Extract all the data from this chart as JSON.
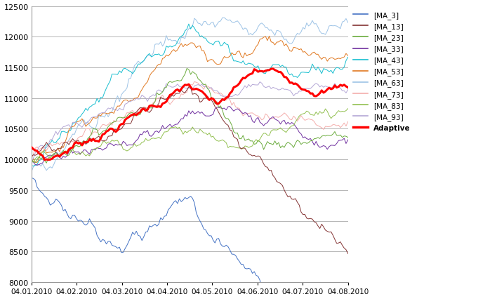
{
  "xlabels": [
    "04.01.2010",
    "04.02.2010",
    "04.03.2010",
    "04.04.2010",
    "04.05.2010",
    "04.06.2010",
    "04.07.2010",
    "04.08.2010"
  ],
  "ylim": [
    8000,
    12500
  ],
  "yticks": [
    8000,
    8500,
    9000,
    9500,
    10000,
    10500,
    11000,
    11500,
    12000,
    12500
  ],
  "series_colors": {
    "MA_3": "#4472C4",
    "MA_13": "#833232",
    "MA_23": "#6AAB3C",
    "MA_33": "#7030A0",
    "MA_43": "#17BECF",
    "MA_53": "#E07820",
    "MA_63": "#9DC3E6",
    "MA_73": "#F4AEAC",
    "MA_83": "#92C050",
    "MA_93": "#B4A7D6",
    "Adaptive": "#FF0000"
  },
  "series_linewidths": {
    "MA_3": 0.7,
    "MA_13": 0.7,
    "MA_23": 0.7,
    "MA_33": 0.7,
    "MA_43": 0.7,
    "MA_53": 0.7,
    "MA_63": 0.7,
    "MA_73": 0.7,
    "MA_83": 0.7,
    "MA_93": 0.7,
    "Adaptive": 2.2
  },
  "background_color": "#FFFFFF",
  "grid_color": "#AAAAAA",
  "legend_labels": [
    "[MA_3]",
    "[MA_13]",
    "[MA_23]",
    "[MA_33]",
    "[MA_43]",
    "[MA_53]",
    "[MA_63]",
    "[MA_73]",
    "[MA_83]",
    "[MA_93]",
    "Adaptive"
  ]
}
